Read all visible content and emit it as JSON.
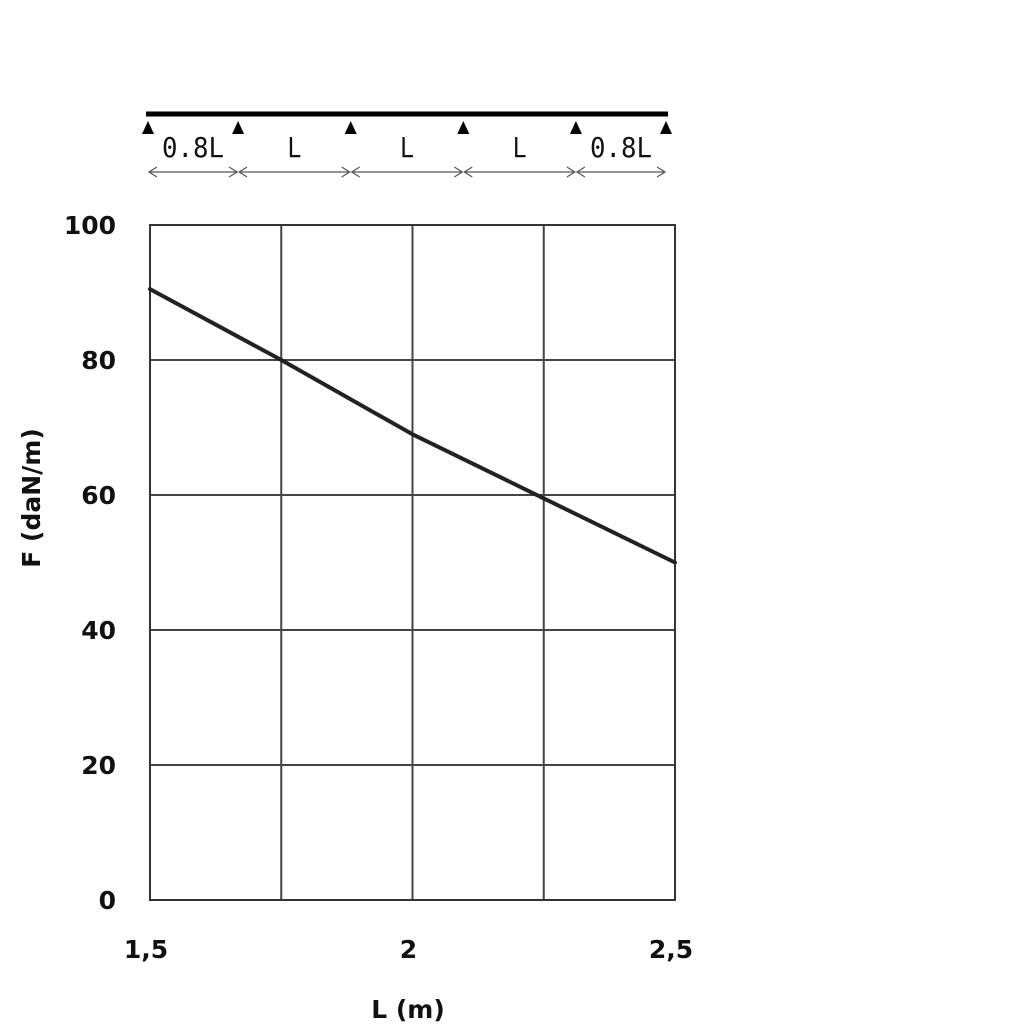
{
  "beam_diagram": {
    "spans": [
      "0.8L",
      "L",
      "L",
      "L",
      "0.8L"
    ]
  },
  "chart_data": {
    "type": "line",
    "xlabel": "L (m)",
    "ylabel": "F (daN/m)",
    "x_tick_labels": [
      "1,5",
      "2",
      "2,5"
    ],
    "y_tick_labels": [
      "0",
      "20",
      "40",
      "60",
      "80",
      "100"
    ],
    "xlim": [
      1.5,
      2.5
    ],
    "ylim": [
      0,
      100
    ],
    "grid": true,
    "series": [
      {
        "x": [
          1.5,
          1.75,
          2.0,
          2.25,
          2.5
        ],
        "values": [
          90.5,
          80,
          69,
          59.5,
          50
        ]
      }
    ]
  }
}
